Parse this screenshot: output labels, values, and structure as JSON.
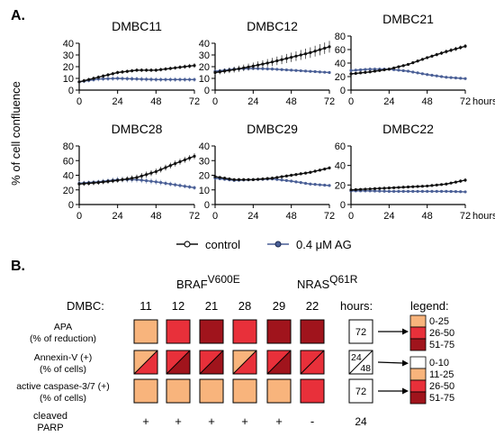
{
  "panel_a_label": "A.",
  "panel_b_label": "B.",
  "ylabel": "% of cell confluence",
  "xunit": "hours",
  "colors": {
    "control": "#111111",
    "treated": "#4a5f96",
    "treated_err": "#8fa0c4"
  },
  "legend": {
    "control": "control",
    "treated": "0.4 μM AG"
  },
  "chart_data": [
    {
      "type": "line",
      "title": "DMBC11",
      "xlabel": "hours",
      "ylabel": "% of cell confluence",
      "xlim": [
        0,
        72
      ],
      "ylim": [
        0,
        40
      ],
      "xticks": [
        0,
        24,
        48,
        72
      ],
      "yticks": [
        0,
        10,
        20,
        30,
        40
      ],
      "series": [
        {
          "name": "control",
          "x": [
            0,
            12,
            24,
            36,
            48,
            60,
            72
          ],
          "y": [
            7,
            11,
            15,
            17,
            17,
            19,
            21
          ],
          "err": [
            1.5,
            1.5,
            1.5,
            1.5,
            1.5,
            1.5,
            2
          ]
        },
        {
          "name": "0.4 μM AG",
          "x": [
            0,
            12,
            24,
            36,
            48,
            60,
            72
          ],
          "y": [
            7,
            9.5,
            10,
            9.5,
            9,
            9,
            9
          ],
          "err": [
            1.5,
            2,
            2,
            2,
            2,
            2,
            2
          ]
        }
      ]
    },
    {
      "type": "line",
      "title": "DMBC12",
      "xlabel": "hours",
      "ylabel": "% of cell confluence",
      "xlim": [
        0,
        72
      ],
      "ylim": [
        0,
        40
      ],
      "xticks": [
        0,
        24,
        48,
        72
      ],
      "yticks": [
        0,
        10,
        20,
        30,
        40
      ],
      "series": [
        {
          "name": "control",
          "x": [
            0,
            12,
            24,
            36,
            48,
            60,
            72
          ],
          "y": [
            15,
            17.5,
            20.5,
            24,
            28,
            32,
            37
          ],
          "err": [
            2,
            2.5,
            3,
            3.5,
            4,
            4.5,
            5
          ]
        },
        {
          "name": "0.4 μM AG",
          "x": [
            0,
            12,
            24,
            36,
            48,
            60,
            72
          ],
          "y": [
            16,
            18,
            18.5,
            18,
            17,
            16,
            15
          ],
          "err": [
            1.5,
            1.5,
            1.5,
            1.5,
            1,
            1,
            1
          ]
        }
      ]
    },
    {
      "type": "line",
      "title": "DMBC21",
      "xlabel": "hours",
      "ylabel": "% of cell confluence",
      "xlim": [
        0,
        72
      ],
      "ylim": [
        0,
        80
      ],
      "xticks": [
        0,
        24,
        48,
        72
      ],
      "yticks": [
        0,
        20,
        40,
        60,
        80
      ],
      "series": [
        {
          "name": "control",
          "x": [
            0,
            12,
            24,
            36,
            48,
            60,
            72
          ],
          "y": [
            24,
            27,
            31,
            38,
            48,
            57,
            65
          ],
          "err": [
            2,
            2,
            2,
            2,
            2,
            3,
            3
          ]
        },
        {
          "name": "0.4 μM AG",
          "x": [
            0,
            12,
            24,
            36,
            48,
            60,
            72
          ],
          "y": [
            29,
            31,
            31,
            28,
            23,
            19,
            17
          ],
          "err": [
            2,
            2,
            2,
            2,
            1.5,
            1.5,
            1.5
          ]
        }
      ]
    },
    {
      "type": "line",
      "title": "DMBC28",
      "xlabel": "hours",
      "ylabel": "% of cell confluence",
      "xlim": [
        0,
        72
      ],
      "ylim": [
        0,
        80
      ],
      "xticks": [
        0,
        24,
        48,
        72
      ],
      "yticks": [
        0,
        20,
        40,
        60,
        80
      ],
      "series": [
        {
          "name": "control",
          "x": [
            0,
            12,
            24,
            36,
            48,
            60,
            72
          ],
          "y": [
            28,
            30,
            33,
            37,
            45,
            56,
            66
          ],
          "err": [
            3,
            3,
            3,
            4,
            4,
            4,
            4
          ]
        },
        {
          "name": "0.4 μM AG",
          "x": [
            0,
            12,
            24,
            36,
            48,
            60,
            72
          ],
          "y": [
            29,
            31,
            34,
            34,
            31,
            27,
            23
          ],
          "err": [
            3,
            3,
            4,
            4,
            4,
            3,
            3
          ]
        }
      ]
    },
    {
      "type": "line",
      "title": "DMBC29",
      "xlabel": "hours",
      "ylabel": "% of cell confluence",
      "xlim": [
        0,
        72
      ],
      "ylim": [
        0,
        40
      ],
      "xticks": [
        0,
        24,
        48,
        72
      ],
      "yticks": [
        0,
        10,
        20,
        30,
        40
      ],
      "series": [
        {
          "name": "control",
          "x": [
            0,
            12,
            24,
            36,
            48,
            60,
            72
          ],
          "y": [
            19,
            17,
            17,
            18,
            20,
            22,
            25
          ],
          "err": [
            1,
            1,
            1,
            1,
            1,
            1,
            1
          ]
        },
        {
          "name": "0.4 μM AG",
          "x": [
            0,
            12,
            24,
            36,
            48,
            60,
            72
          ],
          "y": [
            18,
            16.5,
            17,
            17.5,
            16,
            14,
            13
          ],
          "err": [
            1,
            1,
            1,
            1,
            1,
            1,
            1
          ]
        }
      ]
    },
    {
      "type": "line",
      "title": "DMBC22",
      "xlabel": "hours",
      "ylabel": "% of cell confluence",
      "xlim": [
        0,
        72
      ],
      "ylim": [
        0,
        60
      ],
      "xticks": [
        0,
        24,
        48,
        72
      ],
      "yticks": [
        0,
        20,
        40,
        60
      ],
      "series": [
        {
          "name": "control",
          "x": [
            0,
            12,
            24,
            36,
            48,
            60,
            72
          ],
          "y": [
            15,
            16,
            17,
            18,
            19,
            21,
            25
          ],
          "err": [
            1,
            1,
            1,
            1,
            1,
            1,
            2
          ]
        },
        {
          "name": "0.4 μM AG",
          "x": [
            0,
            12,
            24,
            36,
            48,
            60,
            72
          ],
          "y": [
            14,
            14,
            13.5,
            13.5,
            13.5,
            13.5,
            13
          ],
          "err": [
            1,
            1,
            1,
            1,
            1,
            1,
            1
          ]
        }
      ]
    }
  ],
  "heatmap": {
    "mutation_braf_base": "BRAF",
    "mutation_braf_sup": "V600E",
    "mutation_nras_base": "NRAS",
    "mutation_nras_sup": "Q61R",
    "dmbc_label": "DMBC:",
    "hours_label": "hours:",
    "legend_label": "legend:",
    "columns": [
      "11",
      "12",
      "21",
      "28",
      "29",
      "22"
    ],
    "rows": [
      {
        "label_lines": [
          "APA",
          "(% of reduction)"
        ],
        "hours": "72",
        "cells": [
          [
            "light"
          ],
          [
            "mid"
          ],
          [
            "dark"
          ],
          [
            "mid"
          ],
          [
            "dark"
          ],
          [
            "dark"
          ]
        ]
      },
      {
        "label_lines": [
          "Annexin-V (+)",
          "(% of cells)"
        ],
        "hours_top": "24",
        "hours_bottom": "48",
        "cells": [
          [
            "light",
            "mid"
          ],
          [
            "mid",
            "dark"
          ],
          [
            "mid",
            "dark"
          ],
          [
            "light",
            "mid"
          ],
          [
            "mid",
            "dark"
          ],
          [
            "mid",
            "mid"
          ]
        ]
      },
      {
        "label_lines": [
          "active caspase-3/7 (+)",
          "(% of cells)"
        ],
        "hours": "72",
        "cells": [
          [
            "light"
          ],
          [
            "light"
          ],
          [
            "light"
          ],
          [
            "light"
          ],
          [
            "light"
          ],
          [
            "mid"
          ]
        ]
      }
    ],
    "parp_label_lines": [
      "cleaved",
      "PARP"
    ],
    "parp_values": [
      "+",
      "+",
      "+",
      "+",
      "+",
      "-"
    ],
    "parp_hours": "24",
    "colors": {
      "white": "#ffffff",
      "light": "#f8b47c",
      "mid": "#e8303a",
      "dark": "#a0141c"
    },
    "legend_a": [
      {
        "color": "light",
        "label": "0-25"
      },
      {
        "color": "mid",
        "label": "26-50"
      },
      {
        "color": "dark",
        "label": "51-75"
      }
    ],
    "legend_b": [
      {
        "color": "white",
        "label": "0-10"
      },
      {
        "color": "light",
        "label": "11-25"
      },
      {
        "color": "mid",
        "label": "26-50"
      },
      {
        "color": "dark",
        "label": "51-75"
      }
    ]
  }
}
